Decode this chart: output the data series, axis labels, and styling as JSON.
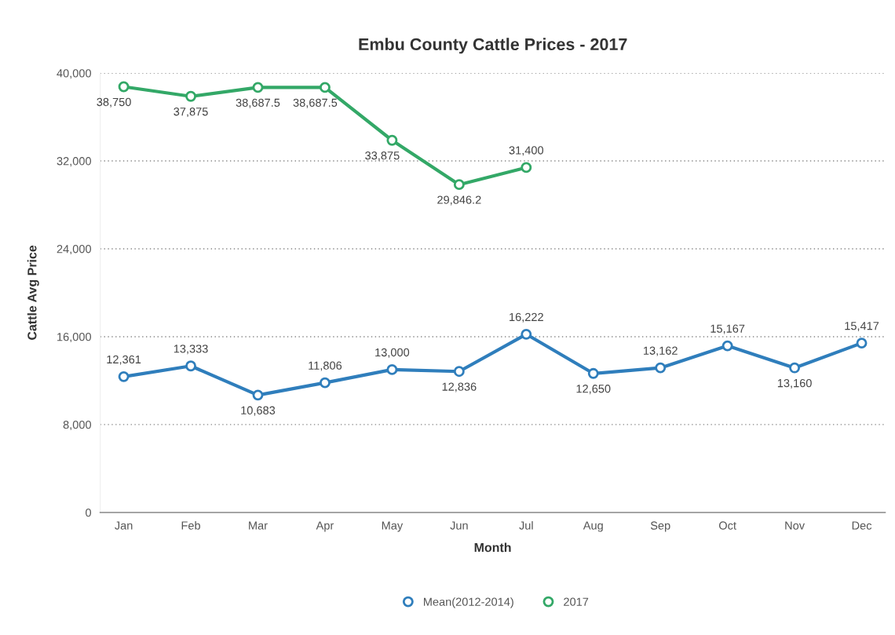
{
  "chart_data": {
    "type": "line",
    "title": "Embu County Cattle Prices - 2017",
    "xlabel": "Month",
    "ylabel": "Cattle Avg Price",
    "categories": [
      "Jan",
      "Feb",
      "Mar",
      "Apr",
      "May",
      "Jun",
      "Jul",
      "Aug",
      "Sep",
      "Oct",
      "Nov",
      "Dec"
    ],
    "series": [
      {
        "name": "Mean(2012-2014)",
        "color": "#2f7ebc",
        "values": [
          12361,
          13333,
          10683,
          11806,
          13000,
          12836,
          16222,
          12650,
          13162,
          15167,
          13160,
          15417
        ],
        "value_labels": [
          "12,361",
          "13,333",
          "10,683",
          "11,806",
          "13,000",
          "12,836",
          "16,222",
          "12,650",
          "13,162",
          "15,167",
          "13,160",
          "15,417"
        ]
      },
      {
        "name": "2017",
        "color": "#33a867",
        "values": [
          38750,
          37875,
          38687.5,
          38687.5,
          33875,
          29846.2,
          31400,
          null,
          null,
          null,
          null,
          null
        ],
        "value_labels": [
          "38,750",
          "37,875",
          "38,687.5",
          "38,687.5",
          "33,875",
          "29,846.2",
          "31,400",
          null,
          null,
          null,
          null,
          null
        ]
      }
    ],
    "ylim": [
      0,
      40000
    ],
    "yticks": [
      0,
      {
        "value": 8000,
        "label": "8,000"
      },
      {
        "value": 16000,
        "label": "16,000"
      },
      {
        "value": 24000,
        "label": "24,000"
      },
      {
        "value": 32000,
        "label": "32,000"
      },
      {
        "value": 40000,
        "label": "40,000"
      }
    ],
    "grid": "y",
    "legend": "bottom",
    "marker": "circle",
    "line_style": "solid"
  }
}
